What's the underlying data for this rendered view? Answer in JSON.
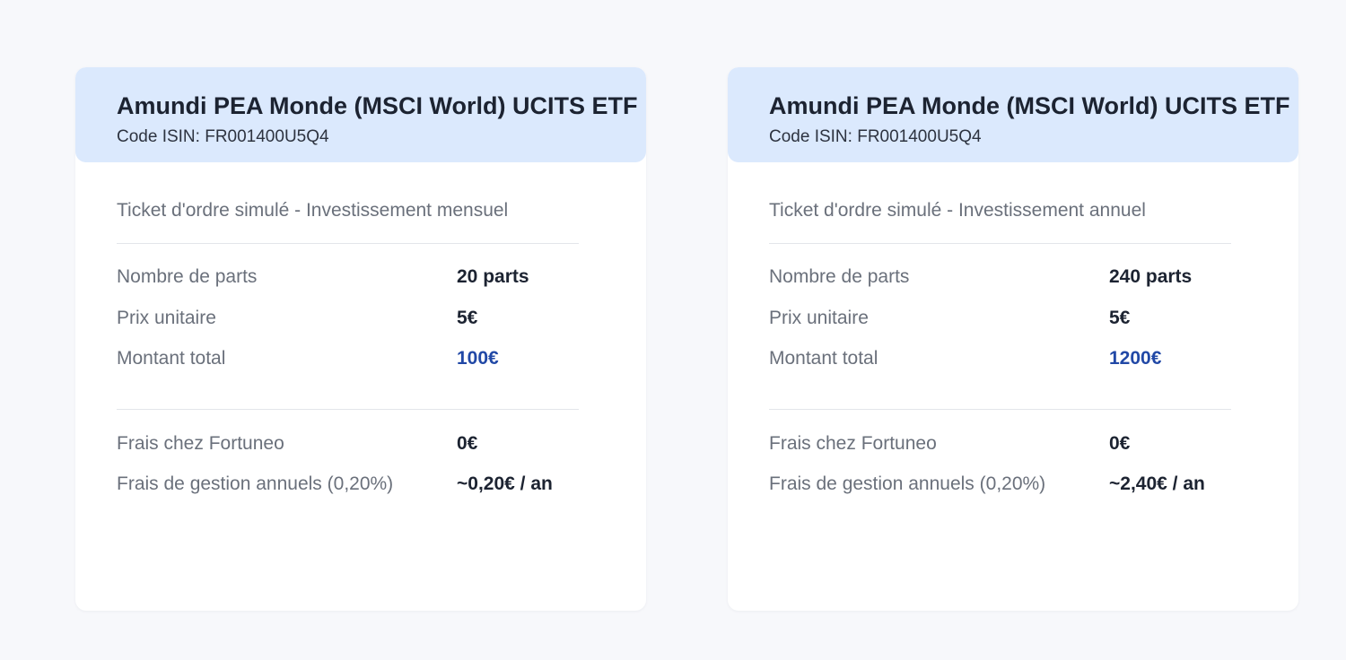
{
  "colors": {
    "page_background": "#f7f8fb",
    "card_background": "#ffffff",
    "header_background": "#dbe9fd",
    "accent_blue": "#2148a6",
    "label_gray": "#6a707b",
    "value_dark": "#1c2331"
  },
  "cards": [
    {
      "title": "Amundi PEA Monde (MSCI World) UCITS ETF",
      "isin": "Code ISIN: FR001400U5Q4",
      "ticket_label": "Ticket d'ordre simulé - Investissement mensuel",
      "rows": [
        {
          "label": "Nombre de parts",
          "value": "20 parts"
        },
        {
          "label": "Prix unitaire",
          "value": "5€"
        },
        {
          "label": "Montant total",
          "value": "100€"
        },
        {
          "label": "Frais chez Fortuneo",
          "value": "0€"
        },
        {
          "label": "Frais de gestion annuels (0,20%)",
          "value": "~0,20€ / an"
        }
      ]
    },
    {
      "title": "Amundi PEA Monde (MSCI World) UCITS ETF",
      "isin": "Code ISIN: FR001400U5Q4",
      "ticket_label": "Ticket d'ordre simulé - Investissement annuel",
      "rows": [
        {
          "label": "Nombre de parts",
          "value": "240 parts"
        },
        {
          "label": "Prix unitaire",
          "value": "5€"
        },
        {
          "label": "Montant total",
          "value": "1200€"
        },
        {
          "label": "Frais chez Fortuneo",
          "value": "0€"
        },
        {
          "label": "Frais de gestion annuels (0,20%)",
          "value": "~2,40€ / an"
        }
      ]
    }
  ]
}
